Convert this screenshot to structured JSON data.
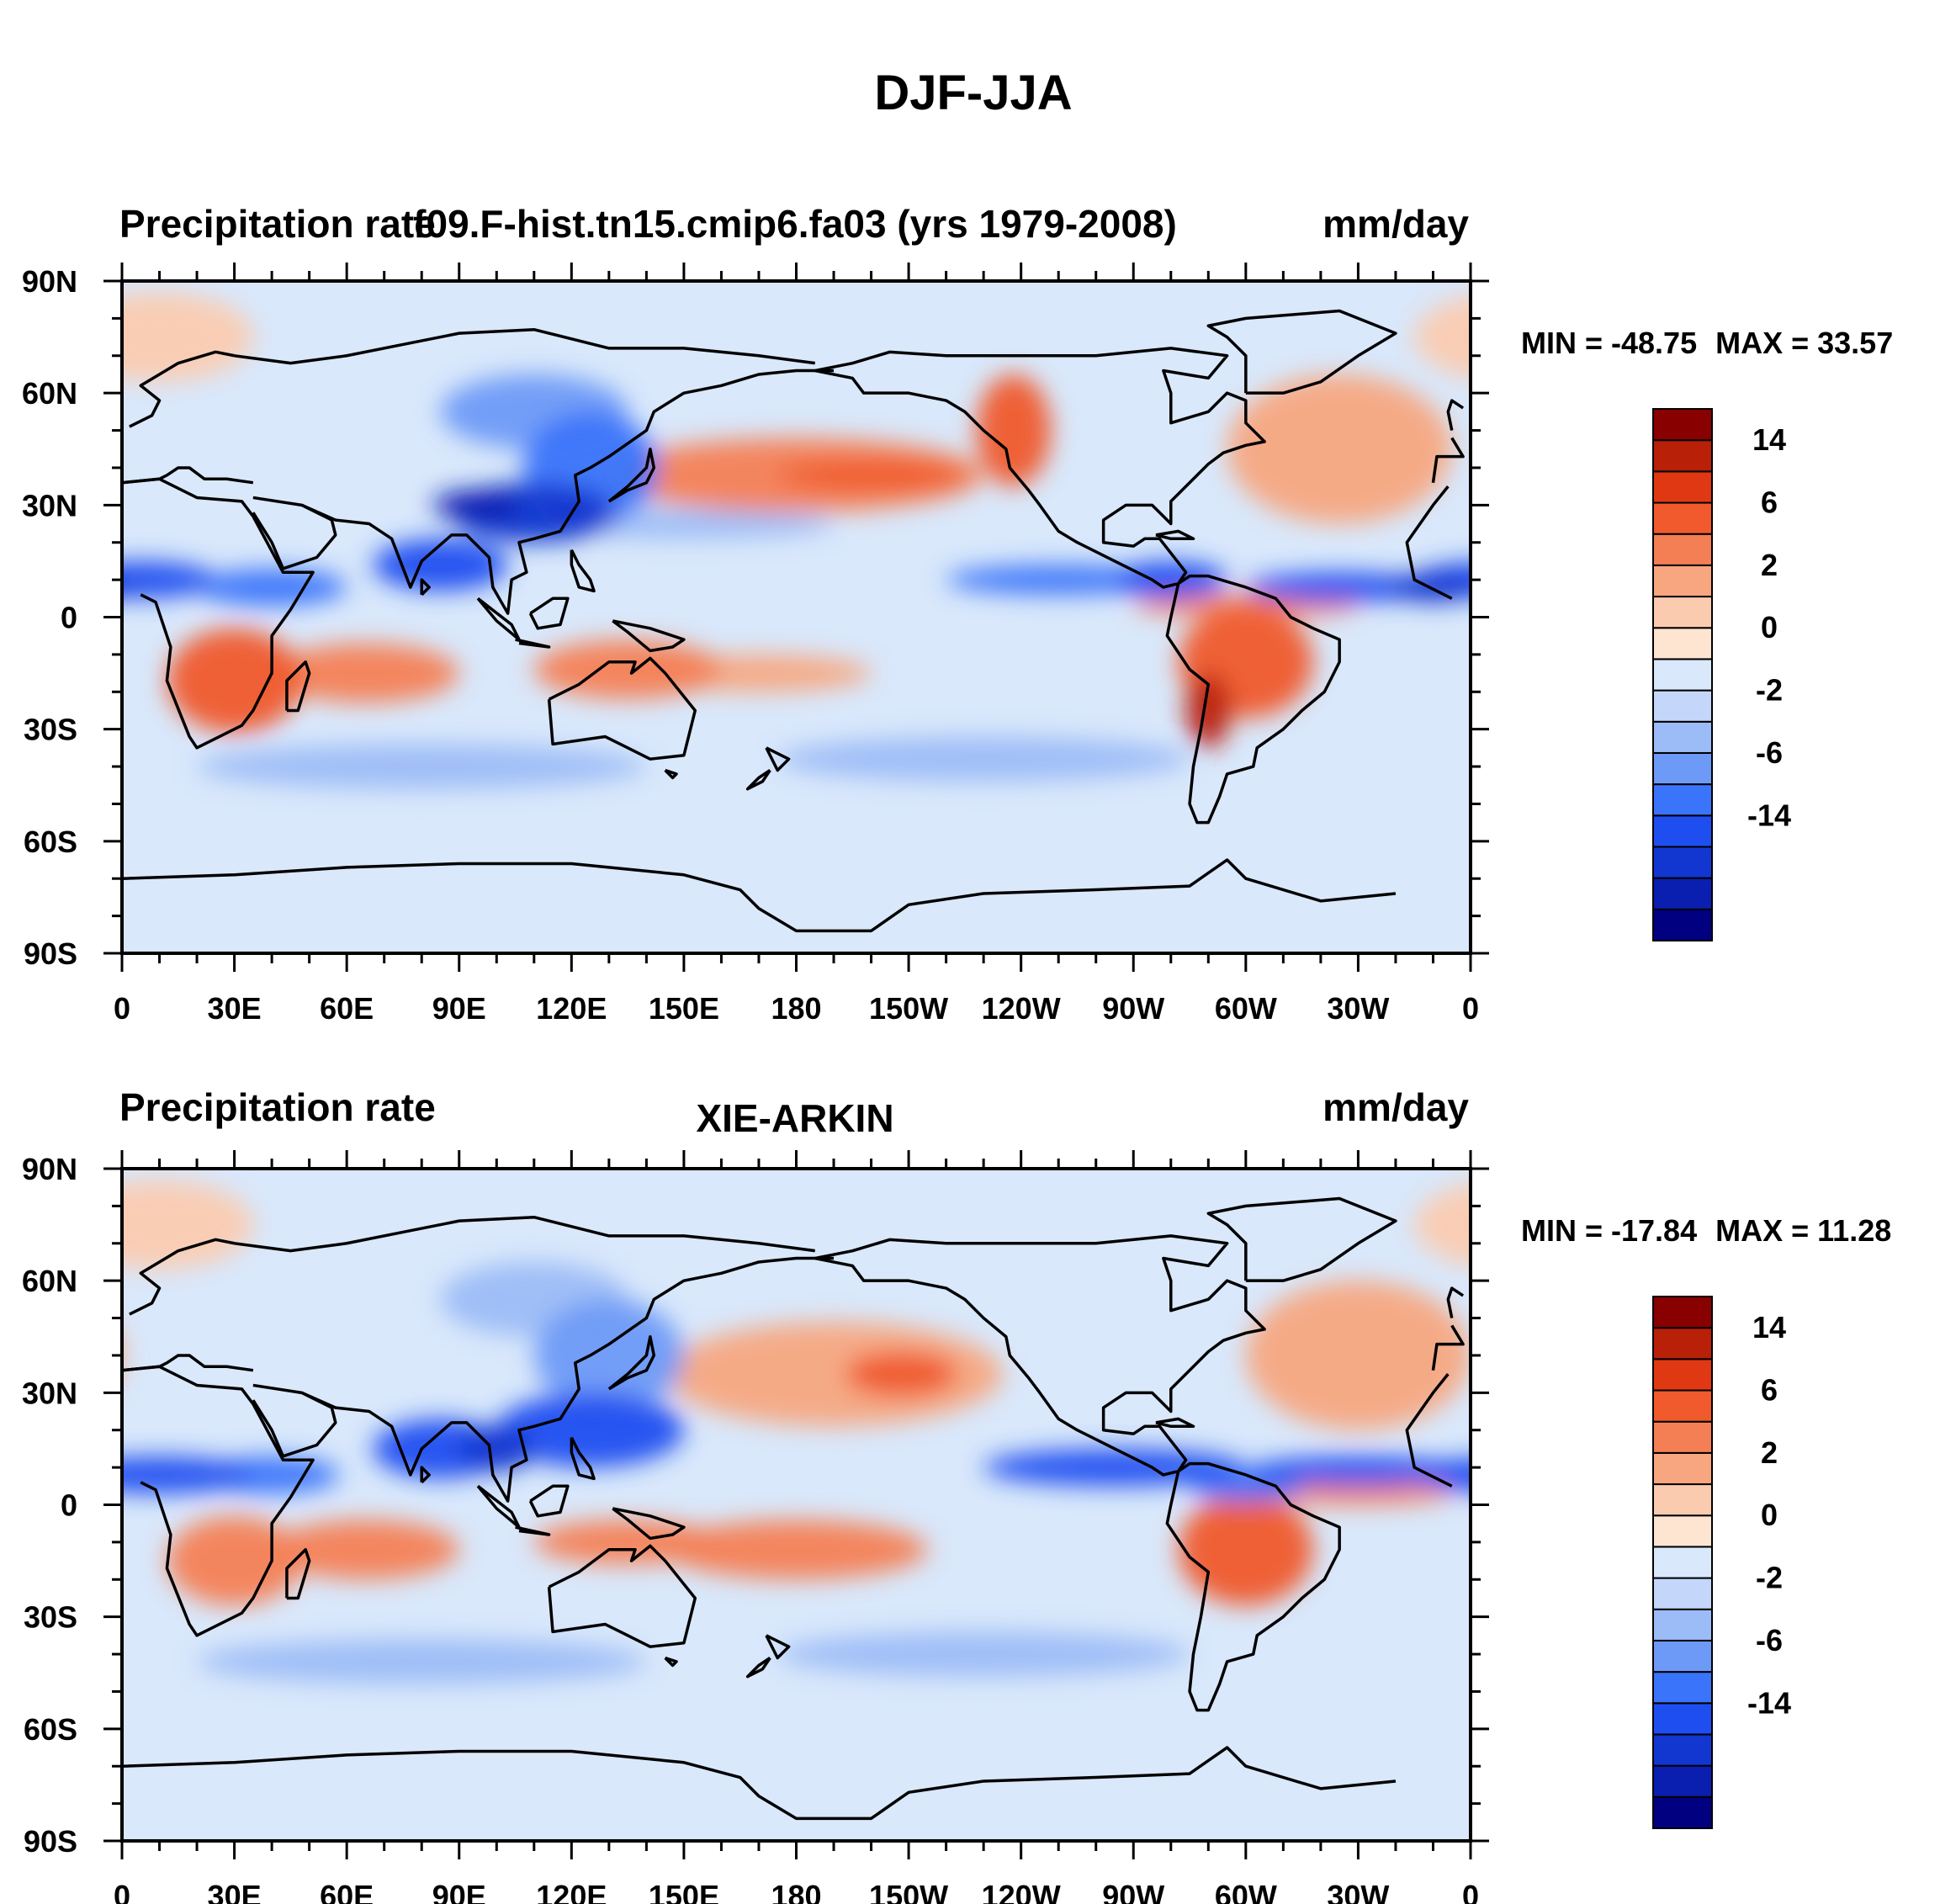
{
  "figure": {
    "title": "DJF-JJA"
  },
  "axes": {
    "lat_labels": [
      "90N",
      "60N",
      "30N",
      "0",
      "30S",
      "60S",
      "90S"
    ],
    "lat_values": [
      90,
      60,
      30,
      0,
      -30,
      -60,
      -90
    ],
    "lon_labels": [
      "0",
      "30E",
      "60E",
      "90E",
      "120E",
      "150E",
      "180",
      "150W",
      "120W",
      "90W",
      "60W",
      "30W",
      "0"
    ],
    "lon_values": [
      0,
      30,
      60,
      90,
      120,
      150,
      180,
      210,
      240,
      270,
      300,
      330,
      360
    ]
  },
  "colorbar": {
    "labels": [
      "14",
      "6",
      "2",
      "0",
      "-2",
      "-6",
      "-14"
    ],
    "colors": [
      "#000080",
      "#0a1fb0",
      "#1236d0",
      "#1f4ef0",
      "#3a74fa",
      "#6e9af7",
      "#9cbcf7",
      "#c4d7fa",
      "#d9e8fb",
      "#fde5d2",
      "#fbcbb0",
      "#f7a680",
      "#f47f55",
      "#f05a2c",
      "#e03812",
      "#b82008",
      "#880000"
    ]
  },
  "panels": [
    {
      "id": "model",
      "left_string": "Precipitation rate",
      "center_string": "f09.F-hist.tn15.cmip6.fa03 (yrs 1979-2008)",
      "right_string": "mm/day",
      "min_label": "MIN = -48.75",
      "max_label": "MAX =  33.57",
      "blobs": [
        {
          "lon": 5,
          "lat": 10,
          "rx": 20,
          "ry": 5,
          "v": -12
        },
        {
          "lon": 40,
          "lat": 8,
          "rx": 20,
          "ry": 5,
          "v": -9
        },
        {
          "lon": 85,
          "lat": 14,
          "rx": 18,
          "ry": 7,
          "v": -12
        },
        {
          "lon": 110,
          "lat": 28,
          "rx": 22,
          "ry": 8,
          "v": -13
        },
        {
          "lon": 95,
          "lat": 30,
          "rx": 12,
          "ry": 4,
          "v": -20
        },
        {
          "lon": 125,
          "lat": 40,
          "rx": 18,
          "ry": 15,
          "v": -8
        },
        {
          "lon": 110,
          "lat": 55,
          "rx": 25,
          "ry": 10,
          "v": -5
        },
        {
          "lon": 250,
          "lat": 10,
          "rx": 30,
          "ry": 4,
          "v": -7
        },
        {
          "lon": 280,
          "lat": 10,
          "rx": 15,
          "ry": 5,
          "v": -11
        },
        {
          "lon": 325,
          "lat": 8,
          "rx": 25,
          "ry": 4,
          "v": -10
        },
        {
          "lon": 350,
          "lat": 8,
          "rx": 12,
          "ry": 4,
          "v": -16
        },
        {
          "lon": 80,
          "lat": -40,
          "rx": 60,
          "ry": 6,
          "v": -3
        },
        {
          "lon": 230,
          "lat": -38,
          "rx": 55,
          "ry": 6,
          "v": -4
        },
        {
          "lon": 150,
          "lat": 25,
          "rx": 40,
          "ry": 4,
          "v": -3
        },
        {
          "lon": 30,
          "lat": -17,
          "rx": 18,
          "ry": 14,
          "v": 6
        },
        {
          "lon": 65,
          "lat": -15,
          "rx": 25,
          "ry": 8,
          "v": 4
        },
        {
          "lon": 135,
          "lat": -14,
          "rx": 25,
          "ry": 8,
          "v": 5
        },
        {
          "lon": 170,
          "lat": -15,
          "rx": 30,
          "ry": 5,
          "v": 3
        },
        {
          "lon": 300,
          "lat": -12,
          "rx": 18,
          "ry": 15,
          "v": 7
        },
        {
          "lon": 290,
          "lat": -25,
          "rx": 6,
          "ry": 10,
          "v": 14
        },
        {
          "lon": 180,
          "lat": 38,
          "rx": 50,
          "ry": 10,
          "v": 4
        },
        {
          "lon": 200,
          "lat": 38,
          "rx": 25,
          "ry": 4,
          "v": 7
        },
        {
          "lon": 238,
          "lat": 50,
          "rx": 10,
          "ry": 15,
          "v": 6
        },
        {
          "lon": 325,
          "lat": 45,
          "rx": 30,
          "ry": 20,
          "v": 3
        },
        {
          "lon": 300,
          "lat": 3,
          "rx": 30,
          "ry": 3,
          "v": 5
        },
        {
          "lon": 10,
          "lat": 75,
          "rx": 25,
          "ry": 12,
          "v": 1
        }
      ]
    },
    {
      "id": "obs",
      "left_string": "Precipitation rate",
      "center_string": "XIE-ARKIN",
      "right_string": "mm/day",
      "min_label": "MIN = -17.84",
      "max_label": "MAX =  11.28",
      "blobs": [
        {
          "lon": 10,
          "lat": 8,
          "rx": 25,
          "ry": 5,
          "v": -10
        },
        {
          "lon": 40,
          "lat": 8,
          "rx": 18,
          "ry": 5,
          "v": -7
        },
        {
          "lon": 85,
          "lat": 15,
          "rx": 18,
          "ry": 8,
          "v": -12
        },
        {
          "lon": 100,
          "lat": 15,
          "rx": 10,
          "ry": 6,
          "v": -15
        },
        {
          "lon": 125,
          "lat": 20,
          "rx": 25,
          "ry": 10,
          "v": -10
        },
        {
          "lon": 130,
          "lat": 40,
          "rx": 20,
          "ry": 15,
          "v": -6
        },
        {
          "lon": 110,
          "lat": 55,
          "rx": 25,
          "ry": 10,
          "v": -4
        },
        {
          "lon": 265,
          "lat": 10,
          "rx": 35,
          "ry": 5,
          "v": -10
        },
        {
          "lon": 330,
          "lat": 9,
          "rx": 30,
          "ry": 4,
          "v": -10
        },
        {
          "lon": 300,
          "lat": 5,
          "rx": 15,
          "ry": 4,
          "v": -8
        },
        {
          "lon": 80,
          "lat": -42,
          "rx": 60,
          "ry": 6,
          "v": -3
        },
        {
          "lon": 230,
          "lat": -40,
          "rx": 55,
          "ry": 6,
          "v": -3
        },
        {
          "lon": 30,
          "lat": -15,
          "rx": 18,
          "ry": 12,
          "v": 5
        },
        {
          "lon": 65,
          "lat": -12,
          "rx": 25,
          "ry": 8,
          "v": 5
        },
        {
          "lon": 135,
          "lat": -10,
          "rx": 25,
          "ry": 6,
          "v": 5
        },
        {
          "lon": 180,
          "lat": -12,
          "rx": 35,
          "ry": 8,
          "v": 5
        },
        {
          "lon": 300,
          "lat": -12,
          "rx": 18,
          "ry": 15,
          "v": 6
        },
        {
          "lon": 190,
          "lat": 35,
          "rx": 45,
          "ry": 14,
          "v": 3
        },
        {
          "lon": 208,
          "lat": 35,
          "rx": 15,
          "ry": 6,
          "v": 6
        },
        {
          "lon": 330,
          "lat": 40,
          "rx": 30,
          "ry": 20,
          "v": 3
        },
        {
          "lon": 330,
          "lat": 3,
          "rx": 25,
          "ry": 3,
          "v": 4
        },
        {
          "lon": 10,
          "lat": 75,
          "rx": 25,
          "ry": 12,
          "v": 1
        }
      ]
    }
  ]
}
